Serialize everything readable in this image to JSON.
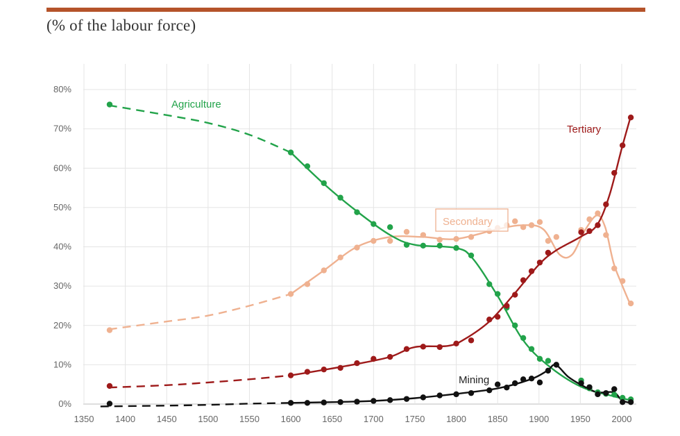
{
  "header": {
    "subtitle": "(% of the labour force)",
    "rule_color": "#b5532a"
  },
  "chart_data": {
    "type": "line",
    "title": "",
    "subtitle": "(% of the labour force)",
    "xlabel": "",
    "ylabel": "",
    "xlim": [
      1350,
      2010
    ],
    "ylim": [
      0,
      80
    ],
    "x_ticks": [
      1350,
      1400,
      1450,
      1500,
      1550,
      1600,
      1650,
      1700,
      1750,
      1800,
      1850,
      1900,
      1950,
      2000
    ],
    "y_ticks": [
      0,
      10,
      20,
      30,
      40,
      50,
      60,
      70,
      80
    ],
    "y_tick_format": "%",
    "grid": true,
    "legend": "inline labels",
    "series": [
      {
        "name": "Agriculture",
        "color": "#22a34a",
        "points": [
          [
            1381,
            76.2
          ],
          [
            1600,
            64
          ],
          [
            1620,
            60.5
          ],
          [
            1640,
            56.2
          ],
          [
            1660,
            52.5
          ],
          [
            1680,
            48.8
          ],
          [
            1700,
            45.8
          ],
          [
            1720,
            45
          ],
          [
            1740,
            40.5
          ],
          [
            1760,
            40.3
          ],
          [
            1780,
            40.3
          ],
          [
            1800,
            39.7
          ],
          [
            1818,
            37.8
          ],
          [
            1840,
            30.5
          ],
          [
            1850,
            28
          ],
          [
            1861,
            24.5
          ],
          [
            1871,
            20
          ],
          [
            1881,
            16.8
          ],
          [
            1891,
            14
          ],
          [
            1901,
            11.5
          ],
          [
            1911,
            11
          ],
          [
            1951,
            6
          ],
          [
            1961,
            4
          ],
          [
            1971,
            3
          ],
          [
            1981,
            2.6
          ],
          [
            1991,
            2.4
          ],
          [
            2001,
            1.6
          ],
          [
            2011,
            1.2
          ]
        ],
        "trend": [
          [
            1380,
            76
          ],
          [
            1450,
            73.5
          ],
          [
            1500,
            71.5
          ],
          [
            1550,
            68.5
          ],
          [
            1600,
            64
          ],
          [
            1640,
            56
          ],
          [
            1680,
            49
          ],
          [
            1720,
            43
          ],
          [
            1750,
            40.5
          ],
          [
            1800,
            39.7
          ],
          [
            1820,
            37
          ],
          [
            1850,
            27.5
          ],
          [
            1880,
            16.5
          ],
          [
            1910,
            10
          ],
          [
            1950,
            4.5
          ],
          [
            1990,
            2
          ],
          [
            2010,
            1
          ]
        ],
        "dashed_until": 1600
      },
      {
        "name": "Secondary",
        "color": "#efb190",
        "points": [
          [
            1381,
            18.8
          ],
          [
            1600,
            28
          ],
          [
            1620,
            30.5
          ],
          [
            1640,
            34
          ],
          [
            1660,
            37.3
          ],
          [
            1680,
            39.8
          ],
          [
            1700,
            41.5
          ],
          [
            1720,
            41.5
          ],
          [
            1740,
            43.8
          ],
          [
            1760,
            43
          ],
          [
            1780,
            41.8
          ],
          [
            1800,
            42
          ],
          [
            1818,
            42.5
          ],
          [
            1840,
            44
          ],
          [
            1850,
            44.8
          ],
          [
            1861,
            45.5
          ],
          [
            1871,
            46.5
          ],
          [
            1881,
            45
          ],
          [
            1891,
            45.5
          ],
          [
            1901,
            46.3
          ],
          [
            1911,
            41.5
          ],
          [
            1921,
            42.5
          ],
          [
            1951,
            44.3
          ],
          [
            1961,
            47
          ],
          [
            1971,
            48.5
          ],
          [
            1981,
            43
          ],
          [
            1991,
            34.5
          ],
          [
            2001,
            31.3
          ],
          [
            2011,
            25.6
          ]
        ],
        "trend": [
          [
            1380,
            19
          ],
          [
            1450,
            21
          ],
          [
            1500,
            22.5
          ],
          [
            1550,
            25
          ],
          [
            1600,
            28
          ],
          [
            1640,
            34
          ],
          [
            1680,
            40
          ],
          [
            1720,
            42.5
          ],
          [
            1760,
            42.5
          ],
          [
            1800,
            42
          ],
          [
            1850,
            44.5
          ],
          [
            1880,
            45.5
          ],
          [
            1905,
            44.5
          ],
          [
            1925,
            38
          ],
          [
            1940,
            38
          ],
          [
            1955,
            44
          ],
          [
            1970,
            48
          ],
          [
            1980,
            45
          ],
          [
            1990,
            36
          ],
          [
            2000,
            30.5
          ],
          [
            2010,
            25.5
          ]
        ],
        "dashed_until": 1600
      },
      {
        "name": "Tertiary",
        "color": "#9e1a1a",
        "points": [
          [
            1381,
            4.6
          ],
          [
            1600,
            7.3
          ],
          [
            1620,
            8.2
          ],
          [
            1640,
            8.8
          ],
          [
            1660,
            9.2
          ],
          [
            1680,
            10.4
          ],
          [
            1700,
            11.5
          ],
          [
            1720,
            12
          ],
          [
            1740,
            14
          ],
          [
            1760,
            14.6
          ],
          [
            1780,
            14.5
          ],
          [
            1800,
            15.4
          ],
          [
            1818,
            16.2
          ],
          [
            1840,
            21.5
          ],
          [
            1850,
            22.2
          ],
          [
            1861,
            25
          ],
          [
            1871,
            27.8
          ],
          [
            1881,
            31.5
          ],
          [
            1891,
            33.8
          ],
          [
            1901,
            36
          ],
          [
            1911,
            38.5
          ],
          [
            1951,
            43.7
          ],
          [
            1961,
            44
          ],
          [
            1971,
            45.5
          ],
          [
            1981,
            50.8
          ],
          [
            1991,
            58.8
          ],
          [
            2001,
            65.8
          ],
          [
            2011,
            72.9
          ]
        ],
        "trend": [
          [
            1380,
            4.2
          ],
          [
            1450,
            4.8
          ],
          [
            1500,
            5.5
          ],
          [
            1550,
            6.3
          ],
          [
            1600,
            7.3
          ],
          [
            1640,
            8.7
          ],
          [
            1680,
            10.2
          ],
          [
            1720,
            12
          ],
          [
            1750,
            14.5
          ],
          [
            1790,
            14.8
          ],
          [
            1810,
            16.5
          ],
          [
            1840,
            21
          ],
          [
            1870,
            28
          ],
          [
            1900,
            35.5
          ],
          [
            1920,
            39
          ],
          [
            1950,
            42.5
          ],
          [
            1970,
            45.5
          ],
          [
            1985,
            53
          ],
          [
            2000,
            65
          ],
          [
            2010,
            72.5
          ]
        ],
        "dashed_until": 1600
      },
      {
        "name": "Mining",
        "color": "#111111",
        "points": [
          [
            1381,
            0.1
          ],
          [
            1600,
            0.3
          ],
          [
            1620,
            0.3
          ],
          [
            1640,
            0.4
          ],
          [
            1660,
            0.5
          ],
          [
            1680,
            0.6
          ],
          [
            1700,
            0.8
          ],
          [
            1720,
            1
          ],
          [
            1740,
            1.3
          ],
          [
            1760,
            1.7
          ],
          [
            1780,
            2.2
          ],
          [
            1800,
            2.5
          ],
          [
            1818,
            2.8
          ],
          [
            1840,
            3.5
          ],
          [
            1850,
            5
          ],
          [
            1861,
            4.2
          ],
          [
            1871,
            5.3
          ],
          [
            1881,
            6.3
          ],
          [
            1891,
            6.5
          ],
          [
            1901,
            5.5
          ],
          [
            1911,
            8.5
          ],
          [
            1921,
            10
          ],
          [
            1951,
            5.3
          ],
          [
            1961,
            4.3
          ],
          [
            1971,
            2.5
          ],
          [
            1981,
            2.8
          ],
          [
            1991,
            3.8
          ],
          [
            2001,
            0.5
          ],
          [
            2011,
            0.5
          ]
        ],
        "trend": [
          [
            1370,
            -0.6
          ],
          [
            1450,
            -0.4
          ],
          [
            1500,
            -0.2
          ],
          [
            1550,
            0.1
          ],
          [
            1600,
            0.3
          ],
          [
            1650,
            0.5
          ],
          [
            1700,
            0.8
          ],
          [
            1750,
            1.5
          ],
          [
            1800,
            2.6
          ],
          [
            1850,
            4
          ],
          [
            1890,
            6.3
          ],
          [
            1910,
            8.5
          ],
          [
            1920,
            10
          ],
          [
            1935,
            7
          ],
          [
            1950,
            5
          ],
          [
            1970,
            3
          ],
          [
            1990,
            3
          ],
          [
            2000,
            1
          ],
          [
            2010,
            0.3
          ]
        ],
        "dashed_until": 1600
      }
    ],
    "labels": {
      "agriculture": "Agriculture",
      "secondary": "Secondary",
      "tertiary": "Tertiary",
      "mining": "Mining"
    }
  }
}
